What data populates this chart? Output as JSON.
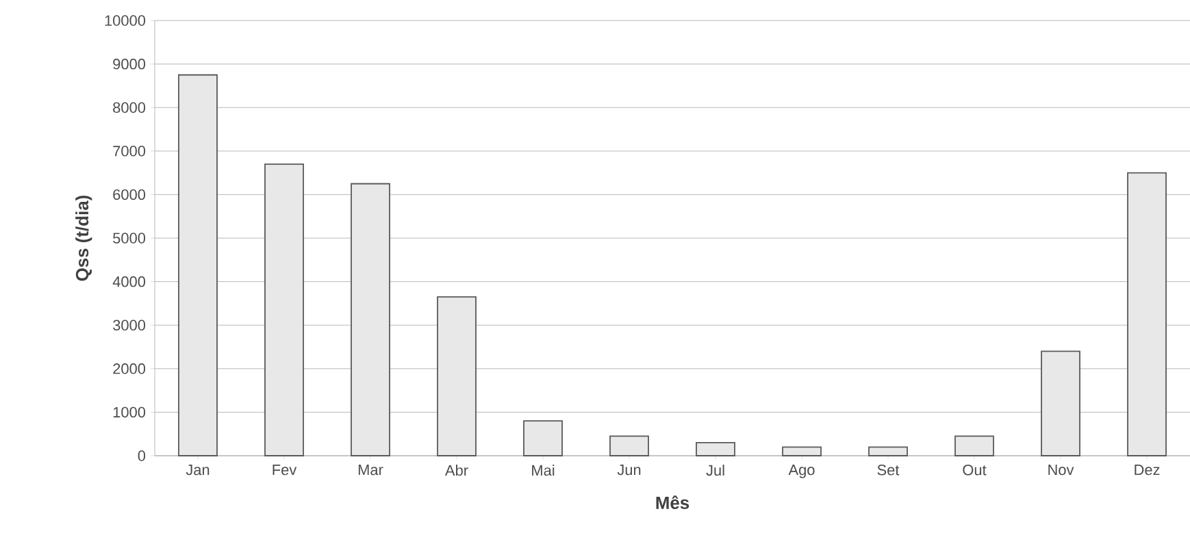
{
  "chart_data": {
    "type": "bar",
    "xlabel": "Mês",
    "ylabel": "Qss (t/dia)",
    "categories": [
      "Jan",
      "Fev",
      "Mar",
      "Abr",
      "Mai",
      "Jun",
      "Jul",
      "Ago",
      "Set",
      "Out",
      "Nov",
      "Dez"
    ],
    "values": [
      8750,
      6700,
      6250,
      3650,
      800,
      450,
      300,
      200,
      200,
      450,
      2400,
      6500
    ],
    "color": "#e8e8e8",
    "ylim": [
      0,
      10000
    ],
    "yticks": [
      0,
      1000,
      2000,
      3000,
      4000,
      5000,
      6000,
      7000,
      8000,
      9000,
      10000
    ],
    "grid": "y"
  }
}
